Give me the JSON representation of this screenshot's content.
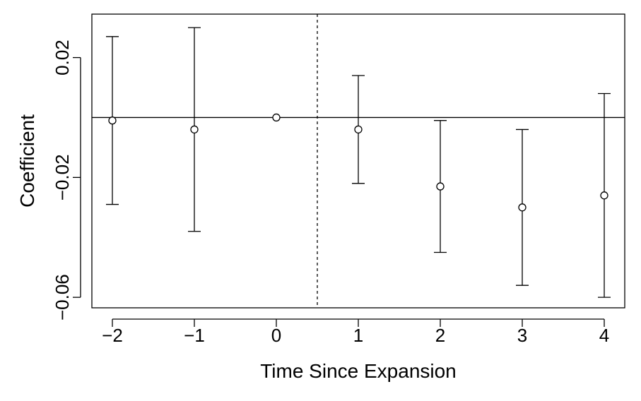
{
  "chart_data": {
    "type": "scatter",
    "xlabel": "Time Since Expansion",
    "ylabel": "Coefficient",
    "x_ticks": [
      -2,
      -1,
      0,
      1,
      2,
      3,
      4
    ],
    "x_tick_labels": [
      "−2",
      "−1",
      "0",
      "1",
      "2",
      "3",
      "4"
    ],
    "y_ticks": [
      0.02,
      -0.02,
      -0.06
    ],
    "y_tick_labels": [
      "0.02",
      "−0.02",
      "−0.06"
    ],
    "xlim": [
      -2.25,
      4.25
    ],
    "ylim": [
      -0.0635,
      0.0345
    ],
    "zero_line": 0,
    "vertical_dashed_line_x": 0.5,
    "points": [
      {
        "x": -2,
        "y": -0.001,
        "lower": -0.029,
        "upper": 0.027
      },
      {
        "x": -1,
        "y": -0.004,
        "lower": -0.038,
        "upper": 0.03
      },
      {
        "x": 0,
        "y": 0.0,
        "lower": null,
        "upper": null
      },
      {
        "x": 1,
        "y": -0.004,
        "lower": -0.022,
        "upper": 0.014
      },
      {
        "x": 2,
        "y": -0.023,
        "lower": -0.045,
        "upper": -0.001
      },
      {
        "x": 3,
        "y": -0.03,
        "lower": -0.056,
        "upper": -0.004
      },
      {
        "x": 4,
        "y": -0.026,
        "lower": -0.06,
        "upper": 0.008
      }
    ],
    "grid": false
  }
}
